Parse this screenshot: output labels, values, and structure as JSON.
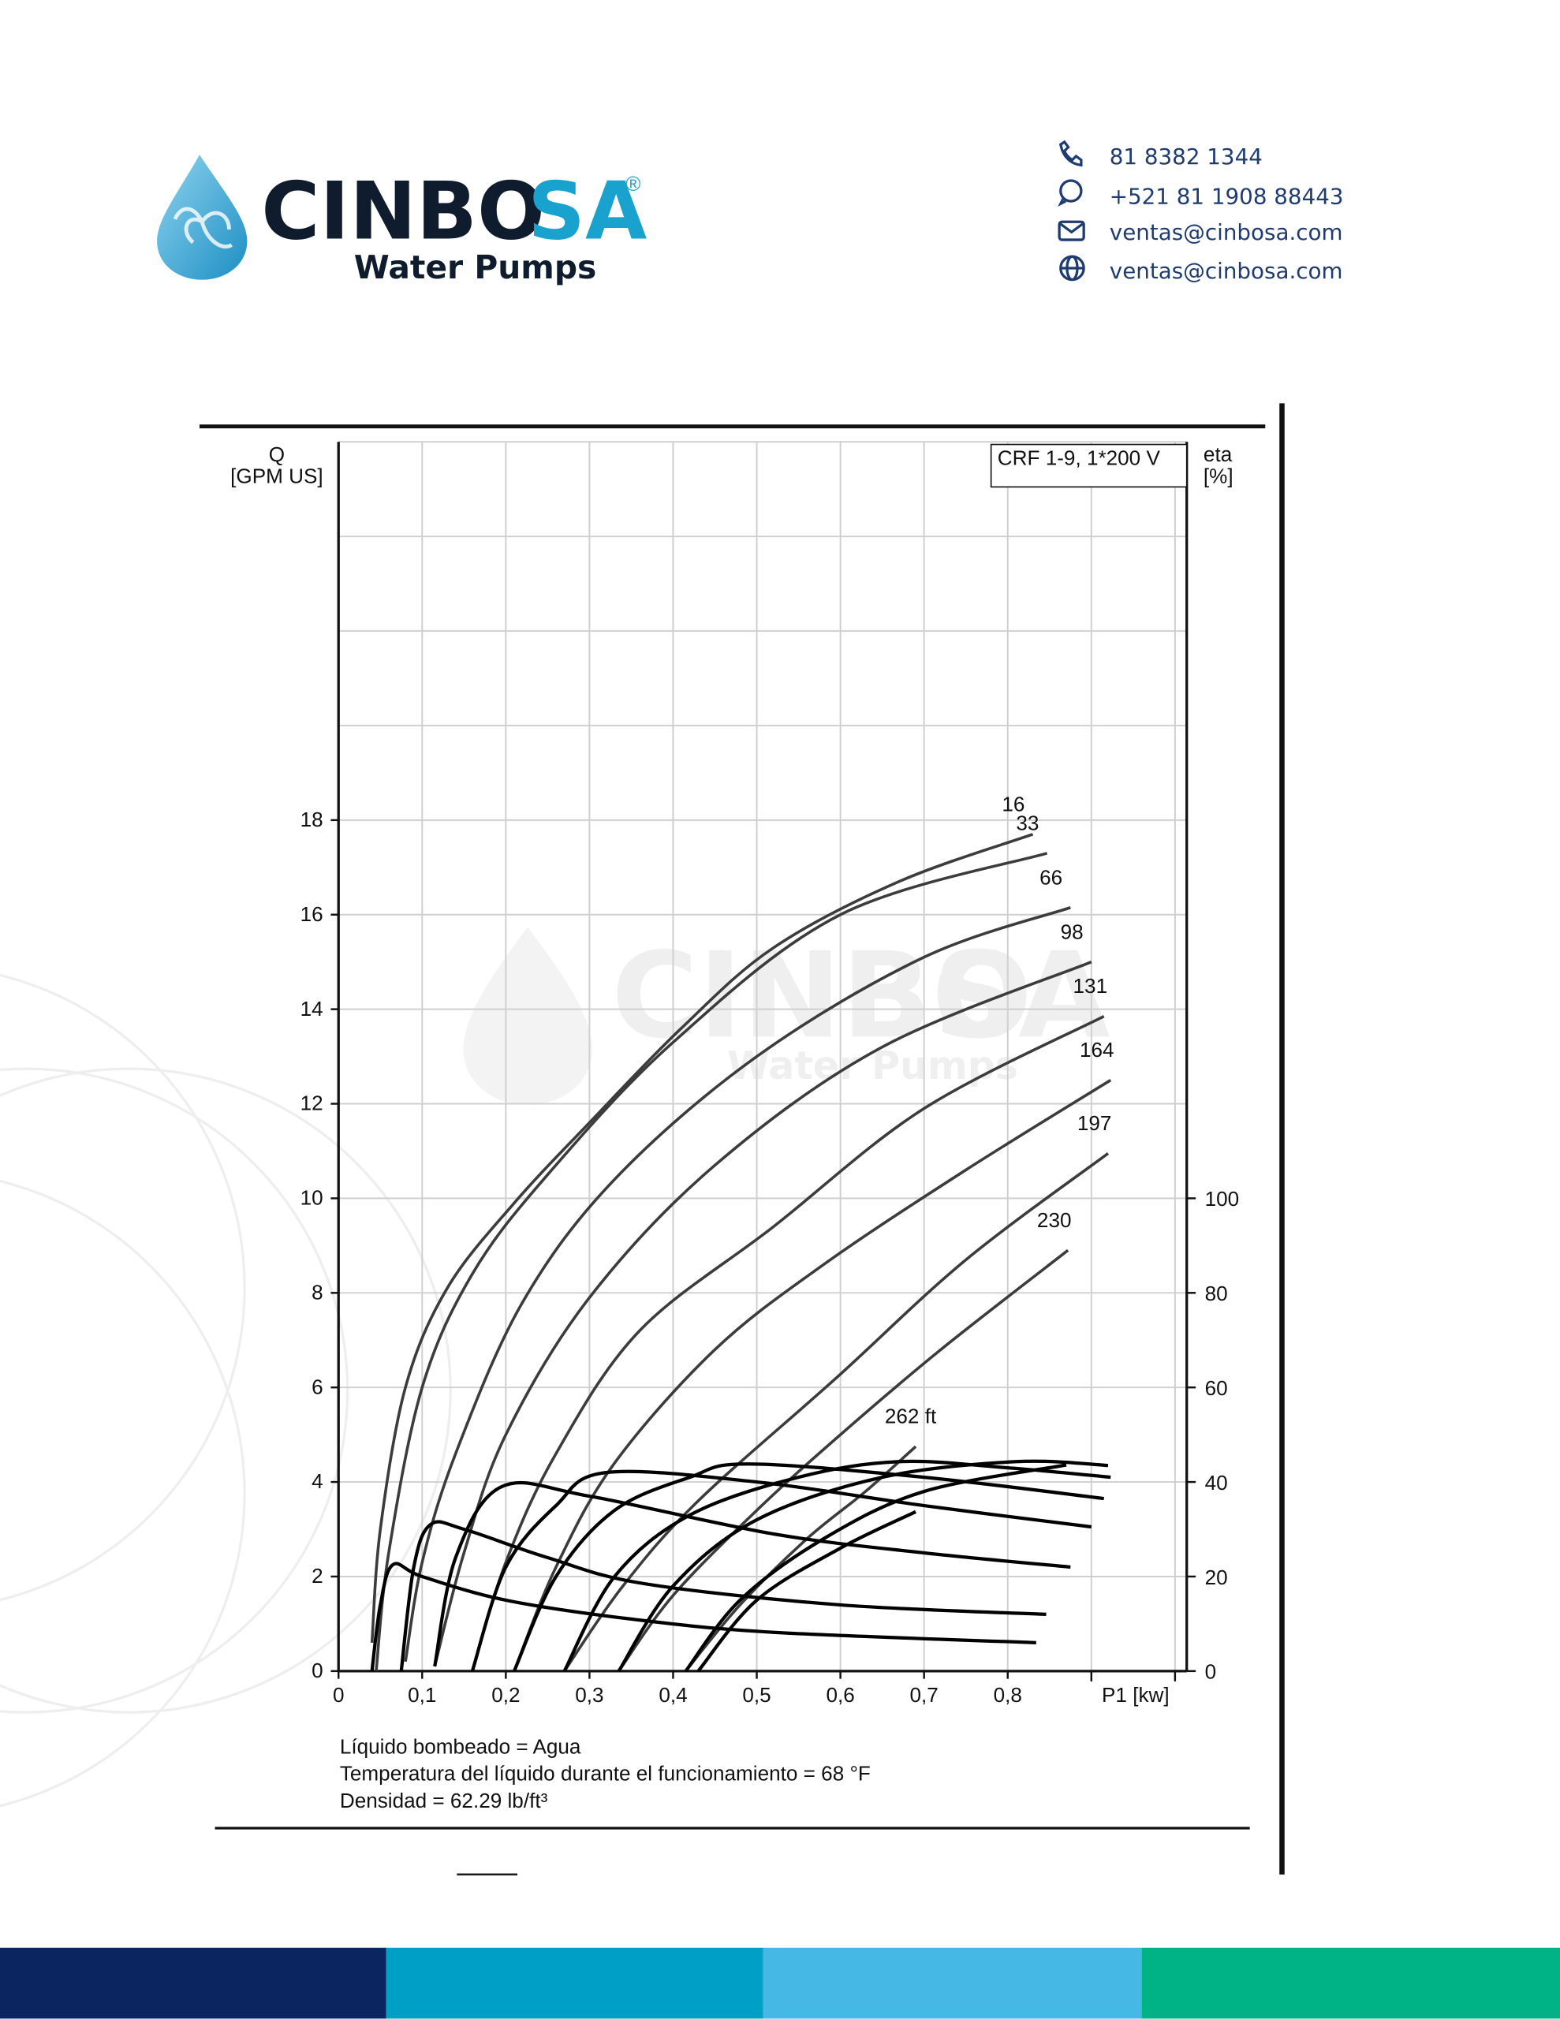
{
  "header": {
    "brand_dark": "CINBO",
    "brand_blue": "SA",
    "registered": "®",
    "tagline": "Water Pumps",
    "contacts": [
      "81 8382 1344",
      "+521 81 1908 88443",
      "ventas@cinbosa.com",
      "ventas@cinbosa.com"
    ]
  },
  "chart_data": {
    "type": "line",
    "annotation": "CRF 1-9, 1*200 V",
    "ylabel": "Q",
    "yunit": "[GPM US]",
    "y2label": "eta",
    "y2unit": "[%]",
    "xlabel": "P1 [kw]",
    "xlim": [
      0,
      1.014
    ],
    "ylim": [
      0,
      26
    ],
    "y2lim": [
      0,
      260
    ],
    "grid": true,
    "xticks": [
      {
        "value": 0,
        "label": "0"
      },
      {
        "value": 0.1,
        "label": "0,1"
      },
      {
        "value": 0.2,
        "label": "0,2"
      },
      {
        "value": 0.3,
        "label": "0,3"
      },
      {
        "value": 0.4,
        "label": "0,4"
      },
      {
        "value": 0.5,
        "label": "0,5"
      },
      {
        "value": 0.6,
        "label": "0,6"
      },
      {
        "value": 0.7,
        "label": "0,7"
      },
      {
        "value": 0.8,
        "label": "0,8"
      }
    ],
    "xgrid": [
      0.1,
      0.2,
      0.3,
      0.4,
      0.5,
      0.6,
      0.7,
      0.8,
      0.9,
      1.0
    ],
    "yticks": [
      0,
      2,
      4,
      6,
      8,
      10,
      12,
      14,
      16,
      18
    ],
    "ygrid": [
      2,
      4,
      6,
      8,
      10,
      12,
      14,
      16,
      18,
      20,
      22,
      24,
      26
    ],
    "y2ticks": [
      0,
      20,
      40,
      60,
      80,
      100
    ],
    "series": [
      {
        "name": "16",
        "color": "#3c3c3c",
        "x": [
          0.04,
          0.05,
          0.08,
          0.13,
          0.21,
          0.3,
          0.41,
          0.52,
          0.67,
          0.83
        ],
        "values": [
          0.6,
          3,
          6,
          8.1,
          9.9,
          11.6,
          13.6,
          15.3,
          16.7,
          17.7
        ]
      },
      {
        "name": "33",
        "color": "#3c3c3c",
        "x": [
          0.045,
          0.06,
          0.1,
          0.16,
          0.25,
          0.4,
          0.6,
          0.847
        ],
        "values": [
          0,
          2.5,
          6,
          8.4,
          10.5,
          13.3,
          16,
          17.3
        ]
      },
      {
        "name": "66",
        "color": "#3c3c3c",
        "x": [
          0.08,
          0.1,
          0.14,
          0.22,
          0.33,
          0.5,
          0.7,
          0.875
        ],
        "values": [
          0.2,
          2.3,
          4.6,
          7.8,
          10.4,
          13,
          15.1,
          16.15
        ]
      },
      {
        "name": "98",
        "color": "#3c3c3c",
        "x": [
          0.115,
          0.15,
          0.2,
          0.3,
          0.45,
          0.65,
          0.9
        ],
        "values": [
          0.1,
          2.5,
          5,
          7.9,
          10.7,
          13.2,
          15
        ]
      },
      {
        "name": "131",
        "color": "#3c3c3c",
        "x": [
          0.16,
          0.2,
          0.26,
          0.36,
          0.52,
          0.7,
          0.915
        ],
        "values": [
          0,
          2.3,
          4.6,
          7.2,
          9.4,
          11.9,
          13.85
        ]
      },
      {
        "name": "164",
        "color": "#3c3c3c",
        "x": [
          0.21,
          0.26,
          0.33,
          0.45,
          0.58,
          0.75,
          0.923
        ],
        "values": [
          0,
          2.2,
          4.4,
          6.8,
          8.6,
          10.6,
          12.5
        ]
      },
      {
        "name": "197",
        "color": "#3c3c3c",
        "x": [
          0.27,
          0.34,
          0.43,
          0.595,
          0.75,
          0.92
        ],
        "values": [
          0,
          1.8,
          3.6,
          6.2,
          8.7,
          10.95
        ]
      },
      {
        "name": "230",
        "color": "#3c3c3c",
        "x": [
          0.335,
          0.4,
          0.5,
          0.6,
          0.72,
          0.872
        ],
        "values": [
          0,
          1.6,
          3.4,
          5,
          6.8,
          8.9
        ]
      },
      {
        "name": "262 ft",
        "color": "#3c3c3c",
        "x": [
          0.415,
          0.48,
          0.56,
          0.63,
          0.69
        ],
        "values": [
          0,
          1.4,
          2.8,
          3.8,
          4.75
        ]
      },
      {
        "axis": "y2",
        "color": "#000000",
        "x": [
          0.04,
          0.05,
          0.065,
          0.1,
          0.2,
          0.35,
          0.52,
          0.834
        ],
        "values": [
          0,
          14,
          22.5,
          20,
          15,
          11,
          8.2,
          6
        ]
      },
      {
        "axis": "y2",
        "color": "#000000",
        "x": [
          0.075,
          0.09,
          0.11,
          0.15,
          0.25,
          0.365,
          0.6,
          0.846
        ],
        "values": [
          0,
          22,
          31,
          30,
          24,
          18.5,
          14,
          12
        ]
      },
      {
        "axis": "y2",
        "color": "#000000",
        "x": [
          0.115,
          0.14,
          0.195,
          0.3,
          0.52,
          0.7,
          0.875
        ],
        "values": [
          1,
          24,
          39,
          37,
          29,
          25,
          22
        ]
      },
      {
        "axis": "y2",
        "color": "#000000",
        "x": [
          0.16,
          0.2,
          0.26,
          0.32,
          0.5,
          0.7,
          0.9
        ],
        "values": [
          0,
          22,
          35,
          42,
          40,
          35,
          30.5
        ]
      },
      {
        "axis": "y2",
        "color": "#000000",
        "x": [
          0.21,
          0.26,
          0.33,
          0.42,
          0.49,
          0.7,
          0.915
        ],
        "values": [
          0,
          20,
          34,
          41,
          43.8,
          41,
          36.5
        ]
      },
      {
        "axis": "y2",
        "color": "#000000",
        "x": [
          0.27,
          0.33,
          0.42,
          0.55,
          0.67,
          0.8,
          0.923
        ],
        "values": [
          0,
          20,
          33,
          41,
          44.3,
          43,
          41
        ]
      },
      {
        "axis": "y2",
        "color": "#000000",
        "x": [
          0.335,
          0.4,
          0.5,
          0.65,
          0.81,
          0.92
        ],
        "values": [
          0,
          18,
          32,
          41,
          44.3,
          43.5
        ]
      },
      {
        "axis": "y2",
        "color": "#000000",
        "x": [
          0.415,
          0.48,
          0.58,
          0.7,
          0.87
        ],
        "values": [
          0,
          15,
          28,
          38,
          43.6
        ]
      },
      {
        "axis": "y2",
        "color": "#000000",
        "x": [
          0.43,
          0.5,
          0.6,
          0.69
        ],
        "values": [
          0,
          15,
          26,
          33.7
        ]
      }
    ]
  },
  "notes": [
    "Líquido bombeado = Agua",
    "Temperatura del líquido durante el funcionamiento = 68 °F",
    "Densidad = 62.29 lb/ft³"
  ]
}
